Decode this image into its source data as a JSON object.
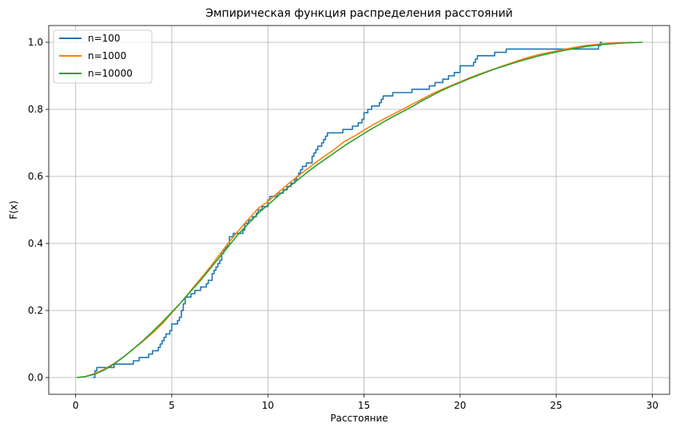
{
  "chart_data": {
    "type": "line",
    "title": "Эмпирическая функция распределения расстояний",
    "xlabel": "Расстояние",
    "ylabel": "F(x)",
    "xlim": [
      -1.4,
      30.9
    ],
    "ylim": [
      -0.05,
      1.05
    ],
    "xticks": [
      0,
      5,
      10,
      15,
      20,
      25,
      30
    ],
    "yticks": [
      0.0,
      0.2,
      0.4,
      0.6,
      0.8,
      1.0
    ],
    "xtick_labels": [
      "0",
      "5",
      "10",
      "15",
      "20",
      "25",
      "30"
    ],
    "ytick_labels": [
      "0.0",
      "0.2",
      "0.4",
      "0.6",
      "0.8",
      "1.0"
    ],
    "grid": true,
    "legend_position": "top-left",
    "series": [
      {
        "name": "n=100",
        "color": "#1f77b4",
        "step": true,
        "points": [
          [
            0.9,
            0.0
          ],
          [
            1.0,
            0.02
          ],
          [
            1.1,
            0.03
          ],
          [
            1.8,
            0.03
          ],
          [
            2.0,
            0.04
          ],
          [
            2.9,
            0.04
          ],
          [
            3.0,
            0.05
          ],
          [
            3.3,
            0.06
          ],
          [
            3.8,
            0.07
          ],
          [
            4.0,
            0.08
          ],
          [
            4.3,
            0.09
          ],
          [
            4.4,
            0.1
          ],
          [
            4.5,
            0.11
          ],
          [
            4.6,
            0.12
          ],
          [
            4.7,
            0.13
          ],
          [
            4.9,
            0.14
          ],
          [
            5.0,
            0.16
          ],
          [
            5.3,
            0.17
          ],
          [
            5.4,
            0.18
          ],
          [
            5.5,
            0.2
          ],
          [
            5.6,
            0.22
          ],
          [
            5.7,
            0.24
          ],
          [
            6.0,
            0.25
          ],
          [
            6.2,
            0.26
          ],
          [
            6.5,
            0.27
          ],
          [
            6.8,
            0.28
          ],
          [
            6.9,
            0.29
          ],
          [
            7.1,
            0.31
          ],
          [
            7.2,
            0.32
          ],
          [
            7.3,
            0.33
          ],
          [
            7.4,
            0.34
          ],
          [
            7.5,
            0.35
          ],
          [
            7.6,
            0.37
          ],
          [
            7.7,
            0.38
          ],
          [
            7.8,
            0.39
          ],
          [
            7.9,
            0.4
          ],
          [
            8.0,
            0.42
          ],
          [
            8.2,
            0.43
          ],
          [
            8.7,
            0.44
          ],
          [
            8.8,
            0.46
          ],
          [
            9.0,
            0.47
          ],
          [
            9.2,
            0.48
          ],
          [
            9.4,
            0.49
          ],
          [
            9.5,
            0.5
          ],
          [
            9.7,
            0.51
          ],
          [
            10.0,
            0.53
          ],
          [
            10.1,
            0.54
          ],
          [
            10.5,
            0.55
          ],
          [
            10.8,
            0.56
          ],
          [
            11.0,
            0.57
          ],
          [
            11.2,
            0.58
          ],
          [
            11.4,
            0.59
          ],
          [
            11.5,
            0.6
          ],
          [
            11.6,
            0.61
          ],
          [
            11.7,
            0.62
          ],
          [
            11.8,
            0.63
          ],
          [
            12.0,
            0.64
          ],
          [
            12.3,
            0.66
          ],
          [
            12.4,
            0.67
          ],
          [
            12.5,
            0.68
          ],
          [
            12.6,
            0.69
          ],
          [
            12.8,
            0.7
          ],
          [
            12.9,
            0.71
          ],
          [
            13.0,
            0.72
          ],
          [
            13.1,
            0.73
          ],
          [
            13.9,
            0.74
          ],
          [
            14.4,
            0.75
          ],
          [
            14.7,
            0.76
          ],
          [
            14.9,
            0.77
          ],
          [
            15.0,
            0.79
          ],
          [
            15.2,
            0.8
          ],
          [
            15.4,
            0.81
          ],
          [
            15.8,
            0.82
          ],
          [
            15.9,
            0.83
          ],
          [
            16.0,
            0.84
          ],
          [
            16.5,
            0.85
          ],
          [
            17.5,
            0.86
          ],
          [
            18.4,
            0.87
          ],
          [
            18.7,
            0.88
          ],
          [
            19.1,
            0.89
          ],
          [
            19.4,
            0.9
          ],
          [
            19.7,
            0.91
          ],
          [
            20.0,
            0.93
          ],
          [
            20.7,
            0.94
          ],
          [
            20.8,
            0.95
          ],
          [
            20.9,
            0.96
          ],
          [
            21.8,
            0.97
          ],
          [
            22.4,
            0.98
          ],
          [
            27.2,
            0.99
          ],
          [
            27.3,
            1.0
          ],
          [
            27.4,
            1.0
          ]
        ]
      },
      {
        "name": "n=1000",
        "color": "#ff7f0e",
        "step": false,
        "points": [
          [
            0.1,
            0.0
          ],
          [
            0.5,
            0.003
          ],
          [
            1.0,
            0.012
          ],
          [
            1.5,
            0.025
          ],
          [
            2.0,
            0.042
          ],
          [
            2.5,
            0.062
          ],
          [
            3.0,
            0.085
          ],
          [
            3.5,
            0.108
          ],
          [
            4.0,
            0.133
          ],
          [
            4.5,
            0.16
          ],
          [
            5.0,
            0.193
          ],
          [
            5.5,
            0.225
          ],
          [
            6.0,
            0.26
          ],
          [
            6.5,
            0.295
          ],
          [
            7.0,
            0.33
          ],
          [
            7.5,
            0.368
          ],
          [
            8.0,
            0.405
          ],
          [
            8.5,
            0.44
          ],
          [
            9.0,
            0.473
          ],
          [
            9.5,
            0.505
          ],
          [
            10.0,
            0.525
          ],
          [
            10.5,
            0.55
          ],
          [
            11.0,
            0.575
          ],
          [
            11.5,
            0.598
          ],
          [
            12.0,
            0.62
          ],
          [
            12.5,
            0.642
          ],
          [
            13.0,
            0.662
          ],
          [
            13.5,
            0.682
          ],
          [
            14.0,
            0.705
          ],
          [
            14.5,
            0.72
          ],
          [
            15.0,
            0.738
          ],
          [
            15.5,
            0.755
          ],
          [
            16.0,
            0.77
          ],
          [
            16.5,
            0.785
          ],
          [
            17.0,
            0.8
          ],
          [
            17.5,
            0.815
          ],
          [
            18.0,
            0.83
          ],
          [
            18.5,
            0.845
          ],
          [
            19.0,
            0.858
          ],
          [
            19.5,
            0.87
          ],
          [
            20.0,
            0.882
          ],
          [
            20.5,
            0.894
          ],
          [
            21.0,
            0.905
          ],
          [
            21.5,
            0.915
          ],
          [
            22.0,
            0.925
          ],
          [
            22.5,
            0.935
          ],
          [
            23.0,
            0.945
          ],
          [
            23.5,
            0.954
          ],
          [
            24.0,
            0.962
          ],
          [
            24.5,
            0.968
          ],
          [
            25.0,
            0.974
          ],
          [
            25.5,
            0.98
          ],
          [
            26.0,
            0.985
          ],
          [
            26.5,
            0.99
          ],
          [
            27.0,
            0.993
          ],
          [
            27.5,
            0.996
          ],
          [
            28.0,
            0.998
          ],
          [
            28.5,
            0.999
          ],
          [
            29.0,
            1.0
          ]
        ]
      },
      {
        "name": "n=10000",
        "color": "#2ca02c",
        "step": false,
        "points": [
          [
            0.05,
            0.0
          ],
          [
            0.5,
            0.003
          ],
          [
            1.0,
            0.01
          ],
          [
            1.5,
            0.023
          ],
          [
            2.0,
            0.04
          ],
          [
            2.5,
            0.062
          ],
          [
            3.0,
            0.085
          ],
          [
            3.5,
            0.11
          ],
          [
            4.0,
            0.137
          ],
          [
            4.5,
            0.165
          ],
          [
            5.0,
            0.195
          ],
          [
            5.5,
            0.225
          ],
          [
            6.0,
            0.258
          ],
          [
            6.5,
            0.29
          ],
          [
            7.0,
            0.325
          ],
          [
            7.5,
            0.36
          ],
          [
            8.0,
            0.395
          ],
          [
            8.5,
            0.43
          ],
          [
            9.0,
            0.46
          ],
          [
            9.5,
            0.49
          ],
          [
            10.0,
            0.515
          ],
          [
            10.5,
            0.54
          ],
          [
            11.0,
            0.565
          ],
          [
            11.5,
            0.587
          ],
          [
            12.0,
            0.61
          ],
          [
            12.5,
            0.632
          ],
          [
            13.0,
            0.652
          ],
          [
            13.5,
            0.672
          ],
          [
            14.0,
            0.692
          ],
          [
            14.5,
            0.71
          ],
          [
            15.0,
            0.728
          ],
          [
            15.5,
            0.745
          ],
          [
            16.0,
            0.762
          ],
          [
            16.5,
            0.778
          ],
          [
            17.0,
            0.793
          ],
          [
            17.5,
            0.808
          ],
          [
            18.0,
            0.825
          ],
          [
            18.5,
            0.84
          ],
          [
            19.0,
            0.855
          ],
          [
            19.5,
            0.868
          ],
          [
            20.0,
            0.88
          ],
          [
            20.5,
            0.892
          ],
          [
            21.0,
            0.903
          ],
          [
            21.5,
            0.914
          ],
          [
            22.0,
            0.924
          ],
          [
            22.5,
            0.933
          ],
          [
            23.0,
            0.942
          ],
          [
            23.5,
            0.95
          ],
          [
            24.0,
            0.958
          ],
          [
            24.5,
            0.965
          ],
          [
            25.0,
            0.971
          ],
          [
            25.5,
            0.977
          ],
          [
            26.0,
            0.982
          ],
          [
            26.5,
            0.987
          ],
          [
            27.0,
            0.991
          ],
          [
            27.5,
            0.994
          ],
          [
            28.0,
            0.996
          ],
          [
            28.5,
            0.998
          ],
          [
            29.0,
            0.999
          ],
          [
            29.5,
            1.0
          ]
        ]
      }
    ]
  }
}
